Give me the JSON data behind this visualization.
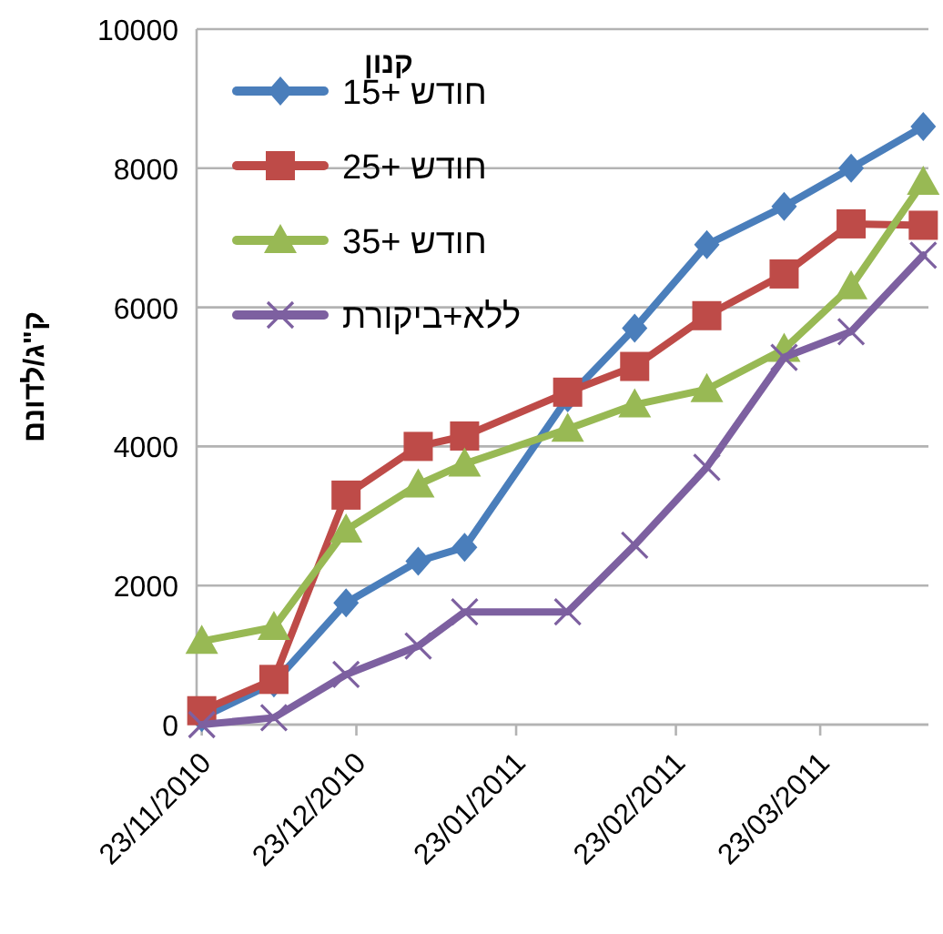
{
  "chart_data": {
    "type": "line",
    "ylabel": "ק\"ג/לדונם",
    "legend_title": "קנון",
    "legend": "top left",
    "grid": "y",
    "x": [
      "2010-11-23",
      "2010-12-07",
      "2010-12-21",
      "2011-01-04",
      "2011-01-13",
      "2011-02-02",
      "2011-02-15",
      "2011-03-01",
      "2011-03-16",
      "2011-03-29",
      "2011-04-12"
    ],
    "xlim": [
      "2010-11-22",
      "2011-04-13"
    ],
    "xticks": [
      {
        "value": "2010-11-23",
        "label": "23/11/2010"
      },
      {
        "value": "2010-12-23",
        "label": "23/12/2010"
      },
      {
        "value": "2011-01-23",
        "label": "23/01/2011"
      },
      {
        "value": "2011-02-23",
        "label": "23/02/2011"
      },
      {
        "value": "2011-03-23",
        "label": "23/03/2011"
      }
    ],
    "ylim": [
      0,
      10000
    ],
    "yticks": [
      0,
      2000,
      4000,
      6000,
      8000,
      10000
    ],
    "series": [
      {
        "name": "חודש +15",
        "color": "#4a7ebb",
        "marker": "diamond",
        "values": [
          100,
          600,
          1750,
          2350,
          2550,
          4700,
          5700,
          6900,
          7450,
          8000,
          8600
        ]
      },
      {
        "name": "חודש +25",
        "color": "#be4b48",
        "marker": "square",
        "values": [
          200,
          650,
          3300,
          4000,
          4150,
          4780,
          5150,
          5880,
          6480,
          7200,
          7180
        ]
      },
      {
        "name": "חודש +35",
        "color": "#98b954",
        "marker": "triangle",
        "values": [
          1200,
          1400,
          2800,
          3450,
          3750,
          4250,
          4600,
          4820,
          5400,
          6300,
          7800
        ]
      },
      {
        "name": "ללא+ביקורת",
        "color": "#7d60a0",
        "marker": "cross",
        "values": [
          0,
          100,
          720,
          1130,
          1620,
          1620,
          2580,
          3700,
          5280,
          5650,
          6750
        ]
      }
    ]
  }
}
